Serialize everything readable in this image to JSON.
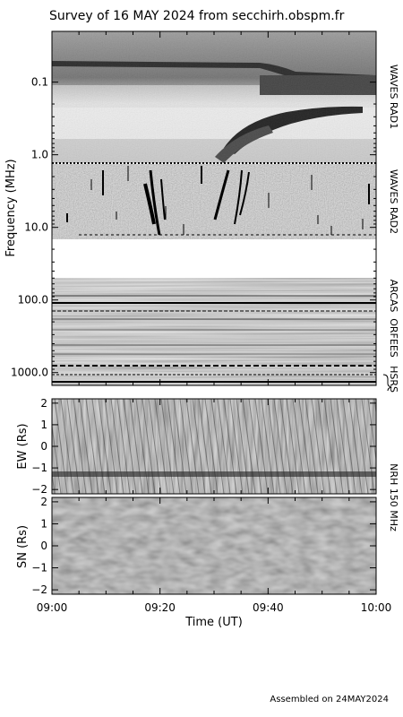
{
  "title": "Survey of 16 MAY 2024 from secchirh.obspm.fr",
  "footer": "Assembled on 24MAY2024",
  "chart_data": [
    {
      "type": "heatmap",
      "name": "Dynamic spectrum (frequency vs time)",
      "ylabel": "Frequency (MHz)",
      "y_scale": "log",
      "y_inverted": true,
      "ylim": [
        0.02,
        1500
      ],
      "y_ticks": [
        "0.1",
        "1.0",
        "10.0",
        "100.0",
        "1000.0"
      ],
      "instruments": [
        {
          "label": "WAVES RAD1"
        },
        {
          "label": "WAVES RAD2"
        },
        {
          "label": "ARCAS"
        },
        {
          "label": "ORFEES"
        },
        {
          "label": "HSRS"
        }
      ]
    },
    {
      "type": "heatmap",
      "name": "NRH EW",
      "ylabel": "EW (Rs)",
      "ylim": [
        -2.2,
        2.2
      ],
      "y_ticks": [
        "2",
        "1",
        "0",
        "−1",
        "−2"
      ]
    },
    {
      "type": "heatmap",
      "name": "NRH SN",
      "ylabel": "SN (Rs)",
      "ylim": [
        -2.2,
        2.2
      ],
      "y_ticks": [
        "2",
        "1",
        "0",
        "−1",
        "−2"
      ],
      "side_label": "NRH 150 MHz"
    }
  ],
  "time_axis": {
    "xlabel": "Time (UT)",
    "start": "09:00",
    "end": "10:00",
    "tick_labels": [
      "09:00",
      "09:20",
      "09:40",
      "10:00"
    ]
  }
}
